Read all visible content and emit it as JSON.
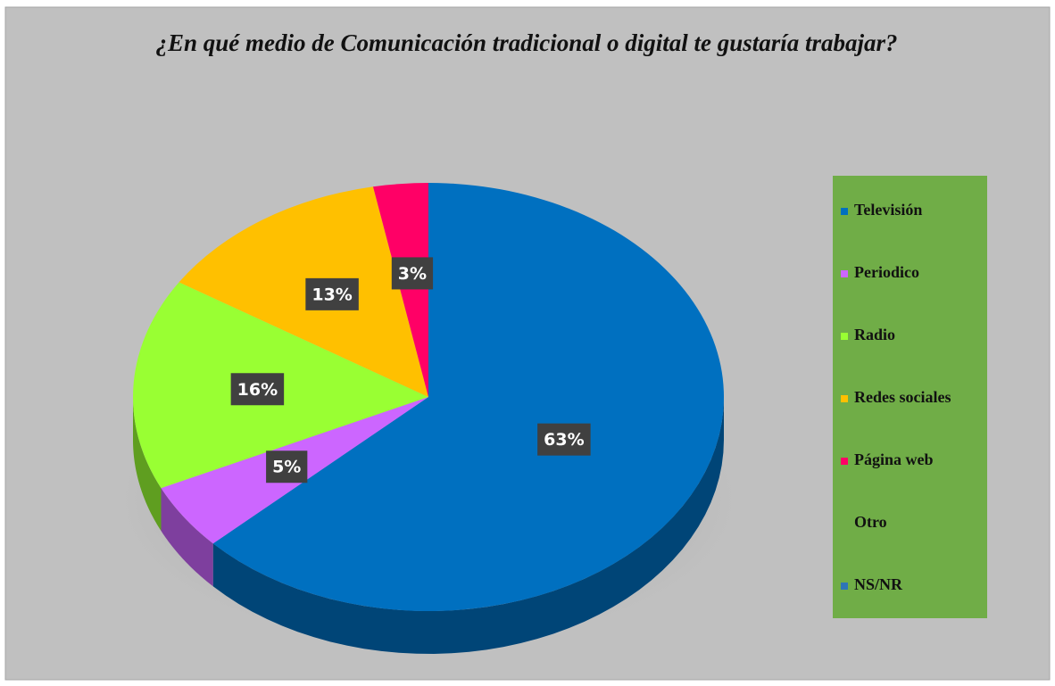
{
  "chart_data": {
    "type": "pie",
    "title": "¿En qué medio de Comunicación tradicional o digital te gustaría trabajar?",
    "categories": [
      "Televisión",
      "Periodico",
      "Radio",
      "Redes sociales",
      "Página web",
      "Otro",
      "NS/NR"
    ],
    "values": [
      63,
      5,
      16,
      13,
      3,
      0,
      0
    ],
    "value_labels": [
      "63%",
      "5%",
      "16%",
      "13%",
      "3%",
      null,
      null
    ],
    "colors": [
      "#0070c0",
      "#cc66ff",
      "#99ff33",
      "#ffc000",
      "#ff0066",
      null,
      "#2e75b6"
    ],
    "legend": "right"
  }
}
